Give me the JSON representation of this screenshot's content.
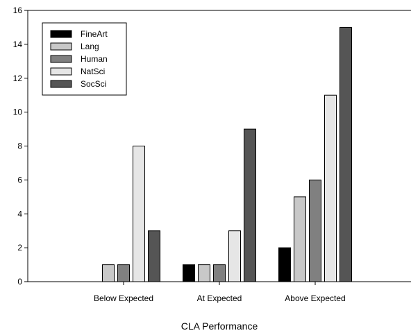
{
  "chart_data": {
    "type": "bar",
    "title": "",
    "xlabel": "CLA Performance",
    "ylabel": "",
    "categories": [
      "Below Expected",
      "At Expected",
      "Above Expected"
    ],
    "ylim": [
      0,
      16
    ],
    "yticks": [
      0,
      2,
      4,
      6,
      8,
      10,
      12,
      14,
      16
    ],
    "grid": false,
    "legend_position": "top-left",
    "series": [
      {
        "name": "FineArt",
        "color": "#000000",
        "values": [
          0,
          1,
          2
        ]
      },
      {
        "name": "Lang",
        "color": "#c8c8c8",
        "values": [
          1,
          1,
          5
        ]
      },
      {
        "name": "Human",
        "color": "#808080",
        "values": [
          1,
          1,
          6
        ]
      },
      {
        "name": "NatSci",
        "color": "#e6e6e6",
        "values": [
          8,
          3,
          11
        ]
      },
      {
        "name": "SocSci",
        "color": "#555555",
        "values": [
          3,
          9,
          15
        ]
      }
    ]
  }
}
